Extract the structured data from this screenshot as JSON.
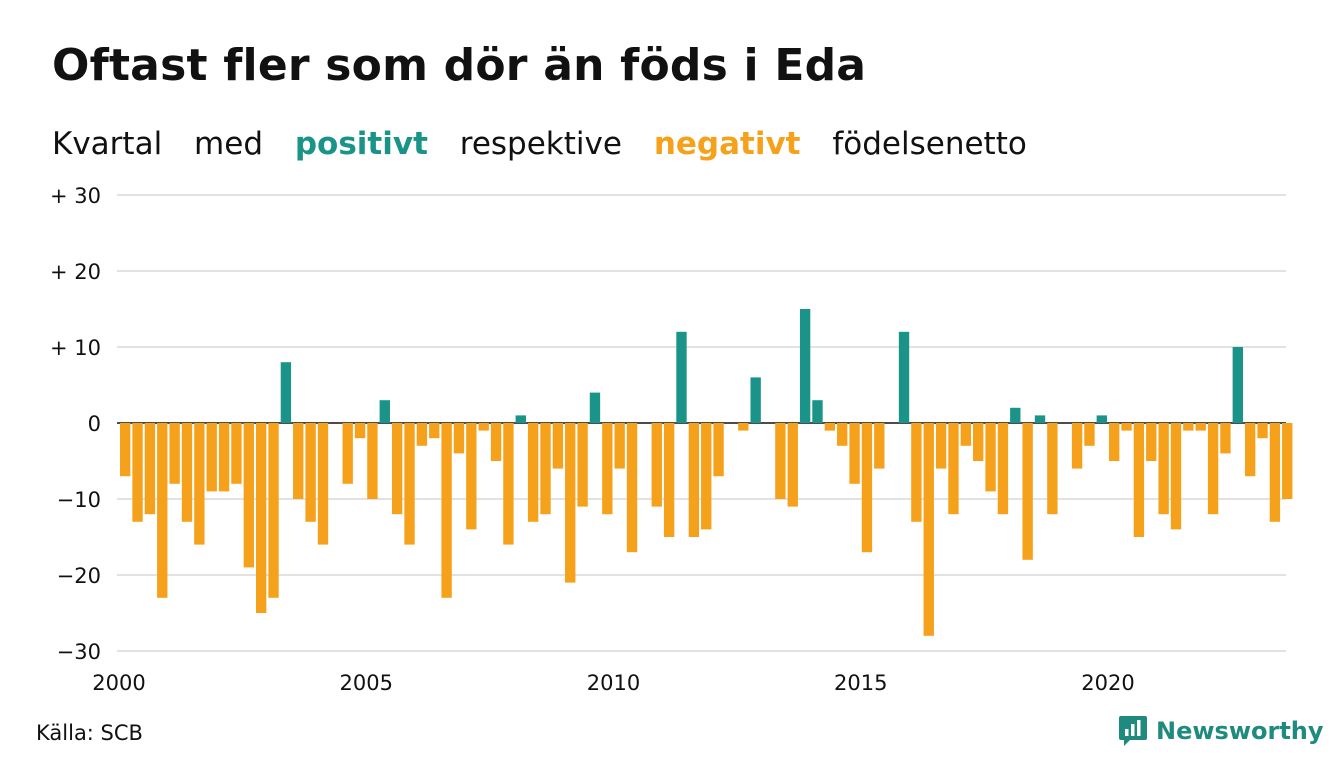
{
  "title": "Oftast fler som dör än föds i Eda",
  "subtitle": {
    "part1": "Kvartal",
    "part2": "med",
    "positive_word": "positivt",
    "part3": "respektive",
    "negative_word": "negativt",
    "part4": "födelsenetto"
  },
  "source": "Källa: SCB",
  "brand": "Newsworthy",
  "colors": {
    "positive": "#1a9488",
    "negative": "#f6a11c",
    "grid": "#d9d9d9",
    "brand": "#1f8a7e"
  },
  "chart_data": {
    "type": "bar",
    "x_start": 2000,
    "x_step": "quarter",
    "x_ticks": [
      "2000",
      "2005",
      "2010",
      "2015",
      "2020"
    ],
    "ylim": [
      -30,
      30
    ],
    "y_ticks": [
      "+ 30",
      "+ 20",
      "+ 10",
      "0",
      "−10",
      "−20",
      "−30"
    ],
    "grid": true,
    "xlabel": "",
    "ylabel": "",
    "values": [
      -7,
      -13,
      -12,
      -23,
      -8,
      -13,
      -16,
      -9,
      -9,
      -8,
      -19,
      -25,
      -23,
      8,
      -10,
      -13,
      -16,
      0,
      -8,
      -2,
      -10,
      3,
      -12,
      -16,
      -3,
      -2,
      -23,
      -4,
      -14,
      -1,
      -5,
      -16,
      1,
      -13,
      -12,
      -6,
      -21,
      -11,
      4,
      -12,
      -6,
      -17,
      0,
      -11,
      -15,
      12,
      -15,
      -14,
      -7,
      0,
      -1,
      6,
      0,
      -10,
      -11,
      15,
      3,
      -1,
      -3,
      -8,
      -17,
      -6,
      0,
      12,
      -13,
      -28,
      -6,
      -12,
      -3,
      -5,
      -9,
      -12,
      2,
      -18,
      1,
      -12,
      0,
      -6,
      -3,
      1,
      -5,
      -1,
      -15,
      -5,
      -12,
      -14,
      -1,
      -1,
      -12,
      -4,
      10,
      -7,
      -2,
      -13,
      -10
    ]
  }
}
